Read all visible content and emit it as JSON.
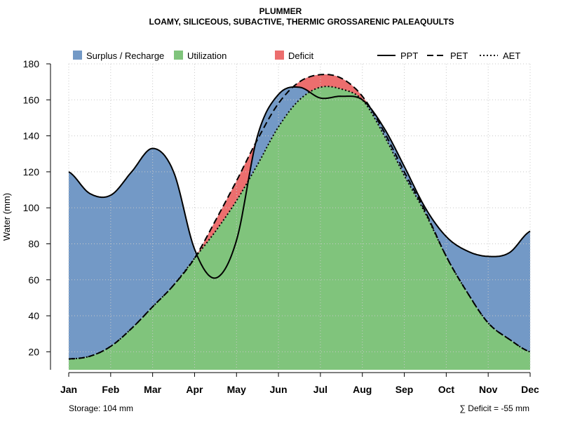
{
  "chart_data": {
    "type": "area",
    "title": "PLUMMER",
    "subtitle": "LOAMY, SILICEOUS, SUBACTIVE, THERMIC GROSSARENIC PALEAQUULTS",
    "ylabel": "Water (mm)",
    "xlabel": "",
    "ylim": [
      10,
      180
    ],
    "yticks": [
      20,
      40,
      60,
      80,
      100,
      120,
      140,
      160,
      180
    ],
    "categories": [
      "Jan",
      "Feb",
      "Mar",
      "Apr",
      "May",
      "Jun",
      "Jul",
      "Aug",
      "Sep",
      "Oct",
      "Nov",
      "Dec"
    ],
    "legend": {
      "fills": [
        {
          "label": "Surplus / Recharge",
          "color": "#7399c6"
        },
        {
          "label": "Utilization",
          "color": "#80c47c"
        },
        {
          "label": "Deficit",
          "color": "#ec6e6e"
        }
      ],
      "lines": [
        {
          "label": "PPT",
          "dash": "solid"
        },
        {
          "label": "PET",
          "dash": "dashed"
        },
        {
          "label": "AET",
          "dash": "dotted"
        }
      ]
    },
    "series": [
      {
        "name": "PPT",
        "values": [
          [
            1,
            120
          ],
          [
            1.5,
            108
          ],
          [
            2,
            107
          ],
          [
            2.5,
            120
          ],
          [
            3,
            133
          ],
          [
            3.5,
            120
          ],
          [
            4,
            77
          ],
          [
            4.5,
            61
          ],
          [
            5,
            82
          ],
          [
            5.5,
            140
          ],
          [
            6,
            163
          ],
          [
            6.5,
            167
          ],
          [
            7,
            161
          ],
          [
            7.5,
            162
          ],
          [
            8,
            160
          ],
          [
            8.5,
            145
          ],
          [
            9,
            123
          ],
          [
            9.5,
            100
          ],
          [
            10,
            84
          ],
          [
            10.5,
            76
          ],
          [
            11,
            73
          ],
          [
            11.5,
            75
          ],
          [
            12,
            87
          ]
        ]
      },
      {
        "name": "PET",
        "values": [
          [
            1,
            16
          ],
          [
            1.5,
            17.5
          ],
          [
            2,
            23
          ],
          [
            2.5,
            33
          ],
          [
            3,
            45
          ],
          [
            3.5,
            57
          ],
          [
            4,
            72
          ],
          [
            4.5,
            93
          ],
          [
            5,
            115
          ],
          [
            5.5,
            138
          ],
          [
            6,
            158
          ],
          [
            6.5,
            170
          ],
          [
            7,
            174
          ],
          [
            7.5,
            172
          ],
          [
            8,
            162
          ],
          [
            8.5,
            143
          ],
          [
            9,
            120
          ],
          [
            9.5,
            98
          ],
          [
            10,
            73
          ],
          [
            10.5,
            53
          ],
          [
            11,
            36
          ],
          [
            11.5,
            27
          ],
          [
            12,
            20
          ]
        ]
      },
      {
        "name": "AET",
        "values": [
          [
            1,
            16
          ],
          [
            1.5,
            17.5
          ],
          [
            2,
            23
          ],
          [
            2.5,
            33
          ],
          [
            3,
            45
          ],
          [
            3.5,
            57
          ],
          [
            4,
            72
          ],
          [
            4.5,
            87
          ],
          [
            5,
            104
          ],
          [
            5.5,
            124
          ],
          [
            6,
            145
          ],
          [
            6.5,
            160
          ],
          [
            7,
            167
          ],
          [
            7.5,
            166
          ],
          [
            8,
            160
          ],
          [
            8.5,
            141
          ],
          [
            9,
            118
          ],
          [
            9.5,
            97
          ],
          [
            10,
            73
          ],
          [
            10.5,
            53
          ],
          [
            11,
            36
          ],
          [
            11.5,
            27
          ],
          [
            12,
            20
          ]
        ]
      }
    ],
    "annotations": {
      "storage": "Storage: 104 mm",
      "deficit": "∑ Deficit = -55 mm"
    },
    "colors": {
      "surplus": "#7399c6",
      "utilization": "#80c47c",
      "deficit": "#ec6e6e",
      "grid": "#c8c8c8"
    }
  }
}
